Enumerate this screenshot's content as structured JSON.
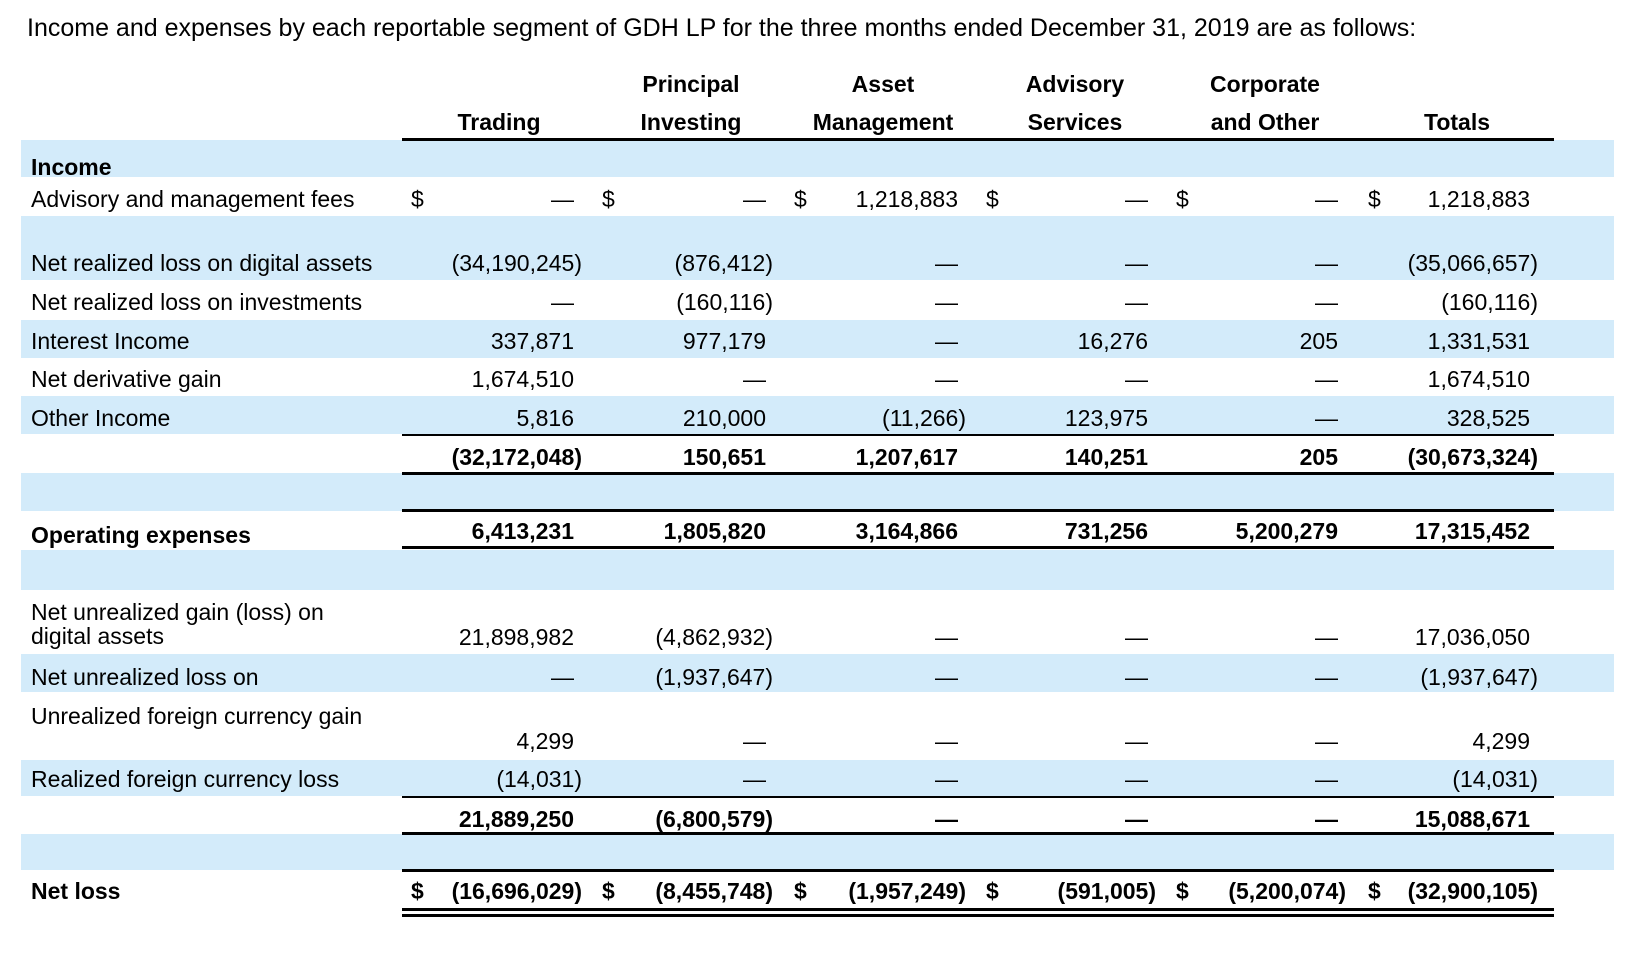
{
  "title": "Income and expenses by each reportable segment of GDH LP for the three months ended December 31, 2019 are as follows:",
  "columns": [
    {
      "line1": "",
      "line2": "Trading"
    },
    {
      "line1": "Principal",
      "line2": "Investing"
    },
    {
      "line1": "Asset",
      "line2": "Management"
    },
    {
      "line1": "Advisory",
      "line2": "Services"
    },
    {
      "line1": "Corporate",
      "line2": "and Other"
    },
    {
      "line1": "",
      "line2": "Totals"
    }
  ],
  "currency_symbol": "$",
  "dash": "—",
  "sections": {
    "income_heading": "Income",
    "advisory_fees": {
      "label": "Advisory and management fees",
      "values": [
        "—",
        "—",
        "1,218,883",
        "—",
        "—",
        "1,218,883"
      ]
    },
    "income_rows": [
      {
        "label": "Net realized loss on digital assets",
        "values": [
          "(34,190,245)",
          "(876,412)",
          "—",
          "—",
          "—",
          "(35,066,657)"
        ]
      },
      {
        "label": "Net realized loss on investments",
        "values": [
          "—",
          "(160,116)",
          "—",
          "—",
          "—",
          "(160,116)"
        ]
      },
      {
        "label": "Interest Income",
        "values": [
          "337,871",
          "977,179",
          "—",
          "16,276",
          "205",
          "1,331,531"
        ]
      },
      {
        "label": "Net derivative gain",
        "values": [
          "1,674,510",
          "—",
          "—",
          "—",
          "—",
          "1,674,510"
        ]
      },
      {
        "label": "Other Income",
        "values": [
          "5,816",
          "210,000",
          "(11,266)",
          "123,975",
          "—",
          "328,525"
        ]
      }
    ],
    "income_total": {
      "values": [
        "(32,172,048)",
        "150,651",
        "1,207,617",
        "140,251",
        "205",
        "(30,673,324)"
      ]
    },
    "operating_expenses": {
      "label": "Operating expenses",
      "values": [
        "6,413,231",
        "1,805,820",
        "3,164,866",
        "731,256",
        "5,200,279",
        "17,315,452"
      ]
    },
    "unrealized_rows": [
      {
        "label_line1": "Net unrealized gain (loss) on",
        "label_line2": "digital assets",
        "values": [
          "21,898,982",
          "(4,862,932)",
          "—",
          "—",
          "—",
          "17,036,050"
        ]
      },
      {
        "label": "Net unrealized loss on",
        "values": [
          "—",
          "(1,937,647)",
          "—",
          "—",
          "—",
          "(1,937,647)"
        ]
      },
      {
        "label": "Unrealized foreign currency gain",
        "values": [
          "4,299",
          "—",
          "—",
          "—",
          "—",
          "4,299"
        ]
      },
      {
        "label": "Realized foreign currency loss",
        "values": [
          "(14,031)",
          "—",
          "—",
          "—",
          "—",
          "(14,031)"
        ]
      }
    ],
    "unrealized_total": {
      "values": [
        "21,889,250",
        "(6,800,579)",
        "—",
        "—",
        "—",
        "15,088,671"
      ]
    },
    "net_loss": {
      "label": "Net loss",
      "values": [
        "(16,696,029)",
        "(8,455,748)",
        "(1,957,249)",
        "(591,005)",
        "(5,200,074)",
        "(32,900,105)"
      ]
    }
  }
}
